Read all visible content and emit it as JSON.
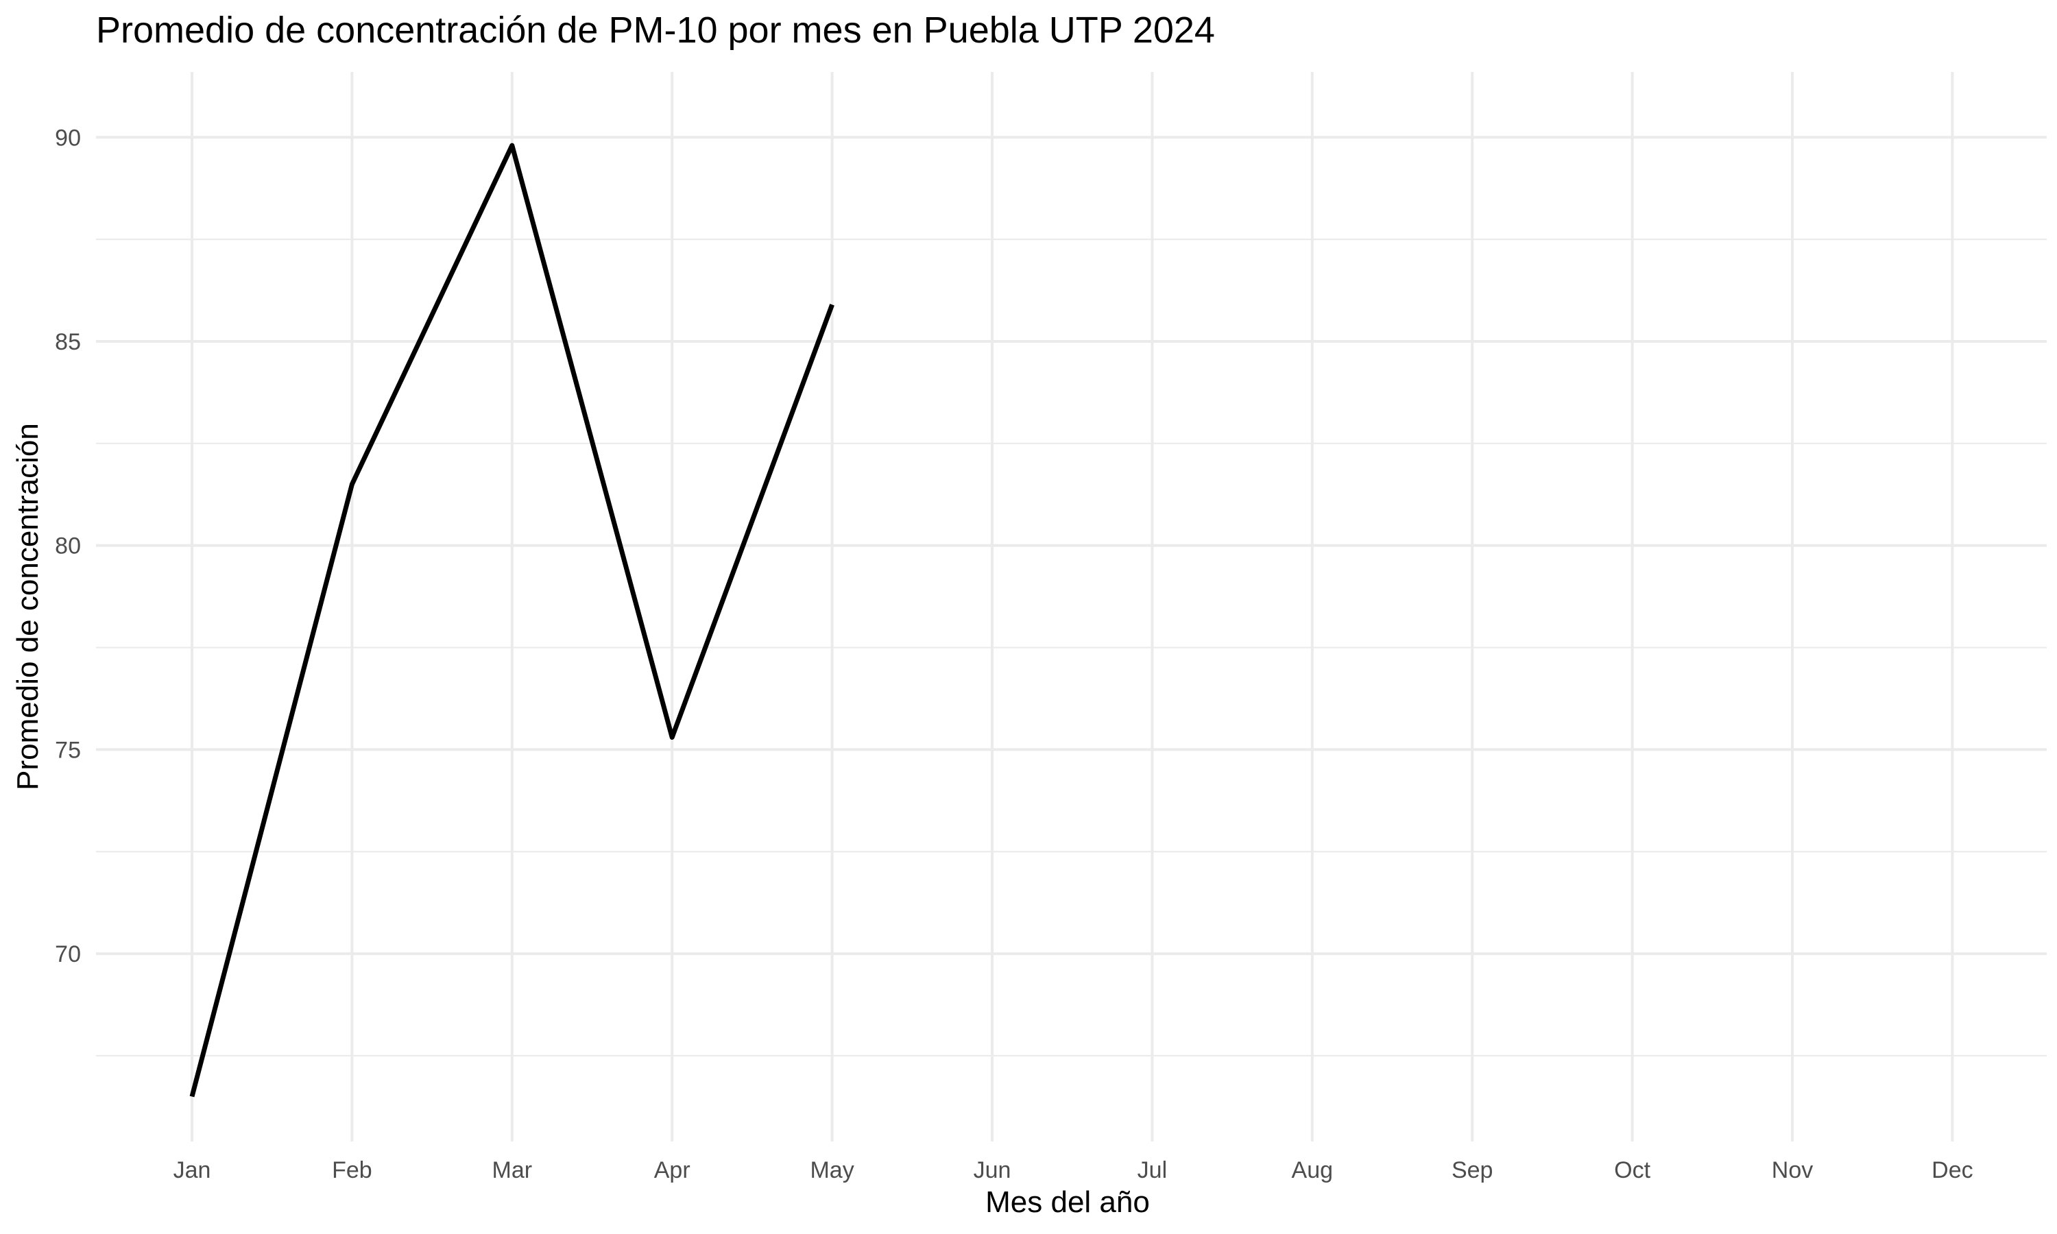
{
  "chart_data": {
    "type": "line",
    "title": "Promedio de concentración de PM-10 por mes en Puebla UTP 2024",
    "xlabel": "Mes del año",
    "ylabel": "Promedio de concentración",
    "categories": [
      "Jan",
      "Feb",
      "Mar",
      "Apr",
      "May",
      "Jun",
      "Jul",
      "Aug",
      "Sep",
      "Oct",
      "Nov",
      "Dec"
    ],
    "y_ticks": [
      70,
      75,
      80,
      85,
      90
    ],
    "y_minor_ticks": [
      67.5,
      72.5,
      77.5,
      82.5,
      87.5
    ],
    "ylim": [
      65.4,
      91.6
    ],
    "grid": true,
    "series": [
      {
        "color": "#000000",
        "values": [
          66.5,
          81.5,
          89.8,
          75.3,
          85.9,
          null,
          null,
          null,
          null,
          null,
          null,
          null
        ]
      }
    ]
  }
}
